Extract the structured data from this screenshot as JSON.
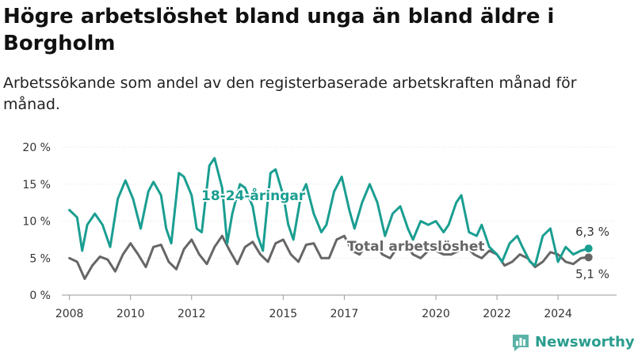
{
  "title": "Högre arbetslöshet bland unga än bland äldre i Borgholm",
  "subtitle": "Arbetssökande som andel av den registerbaserade arbetskraften månad för månad.",
  "brand": {
    "name": "Newsworthy",
    "icon": "newsworthy-logo-icon"
  },
  "colors": {
    "youth": "#1a9e91",
    "total": "#666666",
    "axis": "#999999",
    "grid": "#e0e0e0",
    "brand": "#2a9d8f"
  },
  "chart_data": {
    "type": "line",
    "title": "Högre arbetslöshet bland unga än bland äldre i Borgholm",
    "subtitle": "Arbetssökande som andel av den registerbaserade arbetskraften månad för månad.",
    "xlabel": "",
    "ylabel": "",
    "xlim": [
      "2007-10",
      "2025-12"
    ],
    "ylim": [
      0,
      20
    ],
    "x_ticks": [
      "2008",
      "2010",
      "2012",
      "2015",
      "2017",
      "2020",
      "2022",
      "2024"
    ],
    "y_ticks": [
      "0 %",
      "5 %",
      "10 %",
      "15 %",
      "20 %"
    ],
    "grid": "horizontal",
    "legend": "none",
    "series": [
      {
        "name": "18-24-åringar",
        "end_label": "6,3 %",
        "points": [
          [
            "2008-01",
            11.5
          ],
          [
            "2008-04",
            10.5
          ],
          [
            "2008-06",
            6.0
          ],
          [
            "2008-08",
            9.5
          ],
          [
            "2008-11",
            11.0
          ],
          [
            "2009-02",
            9.5
          ],
          [
            "2009-05",
            6.5
          ],
          [
            "2009-08",
            13.0
          ],
          [
            "2009-11",
            15.5
          ],
          [
            "2010-02",
            13.0
          ],
          [
            "2010-05",
            9.0
          ],
          [
            "2010-08",
            14.0
          ],
          [
            "2010-10",
            15.3
          ],
          [
            "2011-01",
            13.5
          ],
          [
            "2011-03",
            9.0
          ],
          [
            "2011-05",
            7.0
          ],
          [
            "2011-08",
            16.5
          ],
          [
            "2011-10",
            16.0
          ],
          [
            "2012-01",
            13.5
          ],
          [
            "2012-03",
            9.0
          ],
          [
            "2012-05",
            8.5
          ],
          [
            "2012-08",
            17.5
          ],
          [
            "2012-10",
            18.5
          ],
          [
            "2013-01",
            14.5
          ],
          [
            "2013-03",
            7.0
          ],
          [
            "2013-05",
            11.0
          ],
          [
            "2013-08",
            15.0
          ],
          [
            "2013-10",
            14.5
          ],
          [
            "2014-01",
            12.0
          ],
          [
            "2014-03",
            8.0
          ],
          [
            "2014-05",
            6.0
          ],
          [
            "2014-08",
            16.5
          ],
          [
            "2014-10",
            17.0
          ],
          [
            "2015-01",
            13.5
          ],
          [
            "2015-03",
            9.5
          ],
          [
            "2015-05",
            7.5
          ],
          [
            "2015-08",
            13.5
          ],
          [
            "2015-10",
            15.0
          ],
          [
            "2016-01",
            11.0
          ],
          [
            "2016-04",
            8.5
          ],
          [
            "2016-06",
            9.5
          ],
          [
            "2016-09",
            14.0
          ],
          [
            "2016-12",
            16.0
          ],
          [
            "2017-03",
            11.5
          ],
          [
            "2017-05",
            9.0
          ],
          [
            "2017-08",
            12.5
          ],
          [
            "2017-11",
            15.0
          ],
          [
            "2018-02",
            12.5
          ],
          [
            "2018-05",
            8.0
          ],
          [
            "2018-08",
            11.0
          ],
          [
            "2018-11",
            12.0
          ],
          [
            "2019-02",
            9.0
          ],
          [
            "2019-04",
            7.5
          ],
          [
            "2019-07",
            10.0
          ],
          [
            "2019-10",
            9.5
          ],
          [
            "2020-01",
            10.0
          ],
          [
            "2020-04",
            8.5
          ],
          [
            "2020-06",
            9.5
          ],
          [
            "2020-09",
            12.5
          ],
          [
            "2020-11",
            13.5
          ],
          [
            "2021-02",
            8.5
          ],
          [
            "2021-05",
            8.0
          ],
          [
            "2021-07",
            9.5
          ],
          [
            "2021-10",
            6.5
          ],
          [
            "2022-01",
            5.5
          ],
          [
            "2022-03",
            4.5
          ],
          [
            "2022-06",
            7.0
          ],
          [
            "2022-09",
            8.0
          ],
          [
            "2022-11",
            6.5
          ],
          [
            "2023-02",
            4.5
          ],
          [
            "2023-04",
            4.0
          ],
          [
            "2023-07",
            8.0
          ],
          [
            "2023-10",
            9.0
          ],
          [
            "2024-01",
            4.5
          ],
          [
            "2024-04",
            6.5
          ],
          [
            "2024-07",
            5.5
          ],
          [
            "2024-10",
            6.0
          ],
          [
            "2025-01",
            6.3
          ]
        ]
      },
      {
        "name": "Total arbetslöshet",
        "end_label": "5,1 %",
        "points": [
          [
            "2008-01",
            5.0
          ],
          [
            "2008-04",
            4.5
          ],
          [
            "2008-07",
            2.2
          ],
          [
            "2008-10",
            4.0
          ],
          [
            "2009-01",
            5.2
          ],
          [
            "2009-04",
            4.8
          ],
          [
            "2009-07",
            3.2
          ],
          [
            "2009-10",
            5.5
          ],
          [
            "2010-01",
            7.0
          ],
          [
            "2010-04",
            5.5
          ],
          [
            "2010-07",
            3.8
          ],
          [
            "2010-10",
            6.5
          ],
          [
            "2011-01",
            6.8
          ],
          [
            "2011-04",
            4.5
          ],
          [
            "2011-07",
            3.5
          ],
          [
            "2011-10",
            6.2
          ],
          [
            "2012-01",
            7.5
          ],
          [
            "2012-04",
            5.5
          ],
          [
            "2012-07",
            4.2
          ],
          [
            "2012-10",
            6.5
          ],
          [
            "2013-01",
            8.0
          ],
          [
            "2013-04",
            6.0
          ],
          [
            "2013-07",
            4.2
          ],
          [
            "2013-10",
            6.5
          ],
          [
            "2014-01",
            7.2
          ],
          [
            "2014-04",
            5.5
          ],
          [
            "2014-07",
            4.5
          ],
          [
            "2014-10",
            7.0
          ],
          [
            "2015-01",
            7.5
          ],
          [
            "2015-04",
            5.5
          ],
          [
            "2015-07",
            4.5
          ],
          [
            "2015-10",
            6.8
          ],
          [
            "2016-01",
            7.0
          ],
          [
            "2016-04",
            5.0
          ],
          [
            "2016-07",
            5.0
          ],
          [
            "2016-10",
            7.5
          ],
          [
            "2017-01",
            8.0
          ],
          [
            "2017-04",
            6.0
          ],
          [
            "2017-07",
            5.5
          ],
          [
            "2017-10",
            7.0
          ],
          [
            "2018-01",
            7.0
          ],
          [
            "2018-04",
            5.5
          ],
          [
            "2018-07",
            5.0
          ],
          [
            "2018-10",
            6.5
          ],
          [
            "2019-01",
            7.0
          ],
          [
            "2019-04",
            5.5
          ],
          [
            "2019-07",
            5.0
          ],
          [
            "2019-10",
            6.0
          ],
          [
            "2020-01",
            6.0
          ],
          [
            "2020-04",
            5.5
          ],
          [
            "2020-07",
            5.5
          ],
          [
            "2020-10",
            6.0
          ],
          [
            "2021-01",
            6.5
          ],
          [
            "2021-04",
            5.5
          ],
          [
            "2021-07",
            5.0
          ],
          [
            "2021-10",
            6.0
          ],
          [
            "2022-01",
            5.5
          ],
          [
            "2022-04",
            4.0
          ],
          [
            "2022-07",
            4.5
          ],
          [
            "2022-10",
            5.5
          ],
          [
            "2023-01",
            5.0
          ],
          [
            "2023-04",
            3.8
          ],
          [
            "2023-07",
            4.5
          ],
          [
            "2023-10",
            5.8
          ],
          [
            "2024-01",
            5.5
          ],
          [
            "2024-04",
            4.5
          ],
          [
            "2024-07",
            4.2
          ],
          [
            "2024-10",
            5.0
          ],
          [
            "2025-01",
            5.1
          ]
        ]
      }
    ]
  }
}
